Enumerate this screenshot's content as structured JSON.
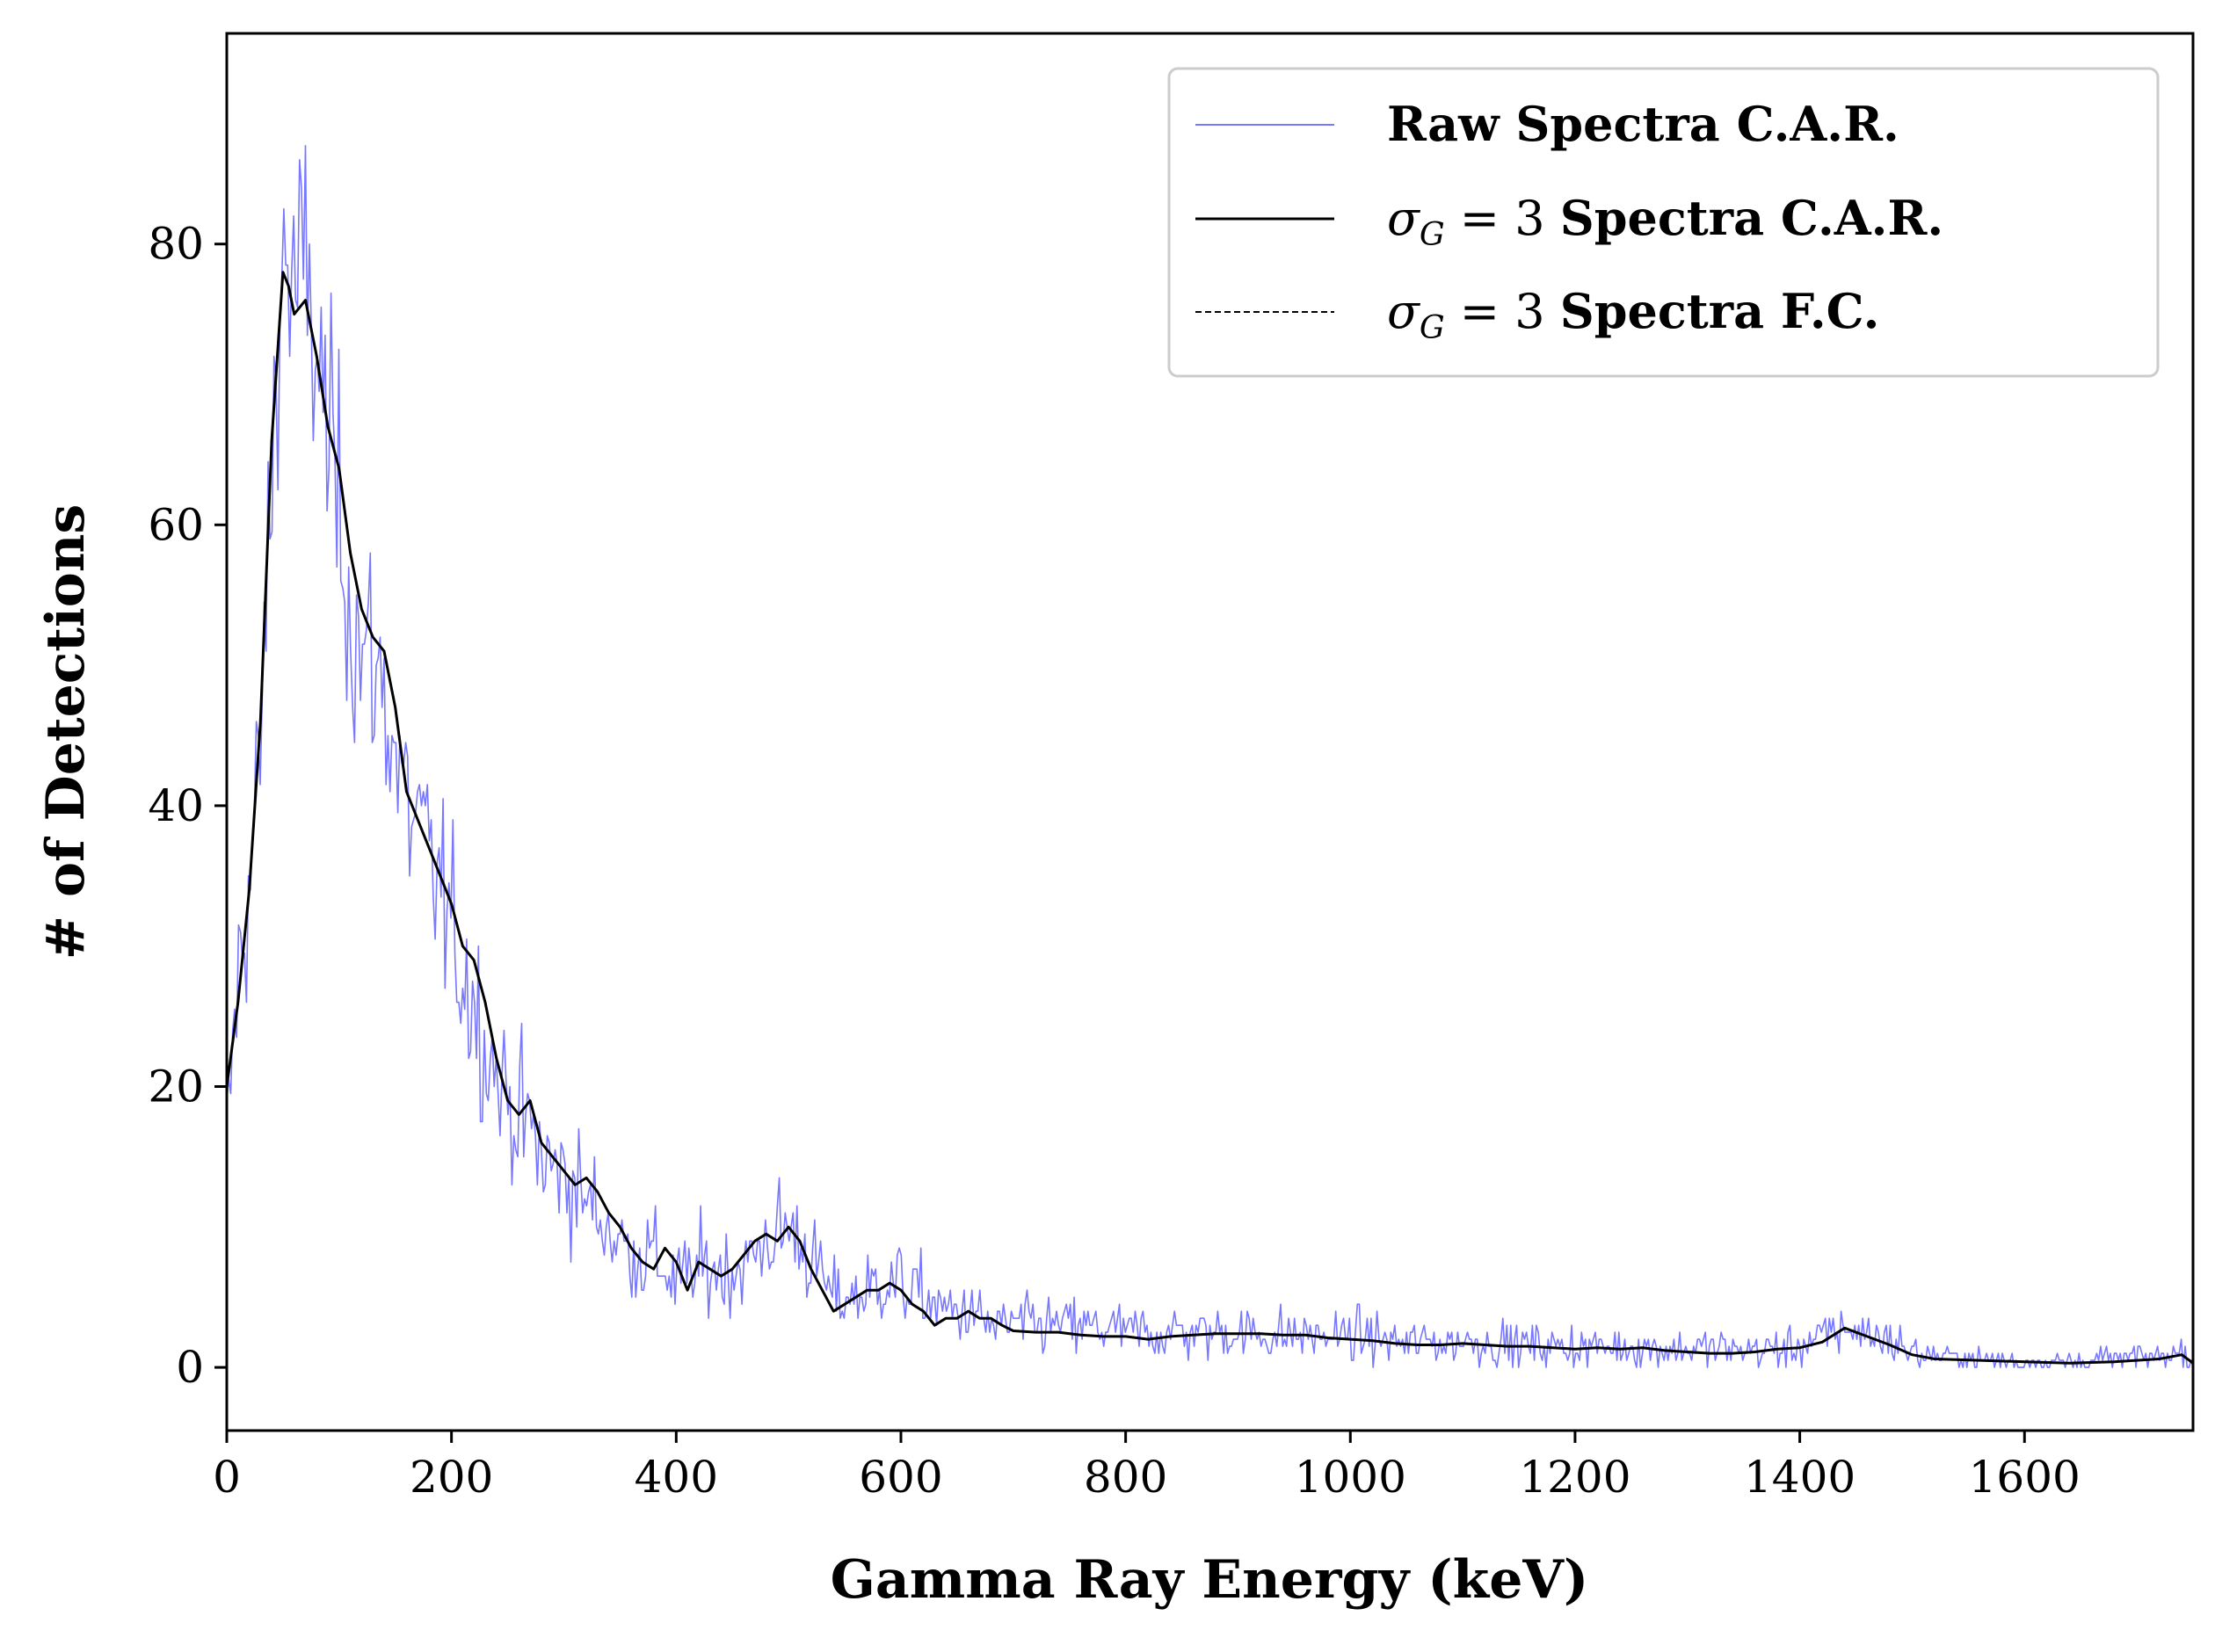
{
  "chart_data": {
    "type": "line",
    "title": "",
    "xlabel": "Gamma Ray Energy (keV)",
    "ylabel": "# of Detections",
    "xlim": [
      0,
      1750
    ],
    "ylim": [
      -4.5,
      95
    ],
    "x_ticks": [
      0,
      200,
      400,
      600,
      800,
      1000,
      1200,
      1400,
      1600
    ],
    "y_ticks": [
      0,
      20,
      40,
      60,
      80
    ],
    "grid": false,
    "legend_position": "top-right",
    "legend": {
      "raw": "Raw Spectra C.A.R.",
      "car_sym": "σ",
      "car_sub": "G",
      "car_eq": " = 3 ",
      "car_text": "Spectra C.A.R.",
      "fc_sym": "σ",
      "fc_sub": "G",
      "fc_eq": " = 3 ",
      "fc_text": "Spectra F.C."
    },
    "series": [
      {
        "name": "Raw Spectra C.A.R.",
        "color": "#7777ff",
        "style": "solid-thin",
        "x": [
          0,
          10,
          20,
          30,
          40,
          50,
          60,
          70,
          80,
          90,
          100,
          110,
          120,
          130,
          140,
          150,
          160,
          170,
          180,
          190,
          200,
          210,
          220,
          230,
          240,
          250,
          260,
          270,
          280,
          290,
          300,
          320,
          340,
          360,
          380,
          400,
          420,
          440,
          460,
          480,
          500,
          520,
          540,
          560,
          580,
          600,
          620,
          640,
          660,
          680,
          700,
          750,
          800,
          850,
          900,
          950,
          1000,
          1050,
          1100,
          1150,
          1200,
          1250,
          1300,
          1350,
          1400,
          1440,
          1480,
          1500,
          1550,
          1600,
          1650,
          1700,
          1740,
          1750
        ],
        "y": [
          16,
          28,
          34,
          44,
          64,
          80,
          76,
          78,
          72,
          66,
          62,
          54,
          51,
          50,
          48,
          44,
          40,
          38,
          36,
          34,
          31,
          28,
          26,
          23,
          21,
          19,
          18,
          17,
          15,
          14,
          14,
          12,
          10,
          8,
          8,
          6,
          7,
          7,
          7,
          9,
          10,
          8,
          5,
          5,
          6,
          6,
          5,
          4,
          4,
          3,
          3,
          3,
          2.5,
          2.5,
          2.5,
          2.3,
          2.2,
          1.8,
          1.8,
          1.6,
          1.5,
          1.5,
          1.3,
          1.2,
          1.4,
          2.8,
          2,
          1,
          0.6,
          0.4,
          0.4,
          0.6,
          1,
          0.5
        ]
      },
      {
        "name": "σ_G = 3 Spectra C.A.R.",
        "color": "#000000",
        "style": "solid",
        "x": [
          0,
          10,
          20,
          30,
          40,
          50,
          55,
          60,
          70,
          80,
          90,
          100,
          110,
          120,
          130,
          140,
          150,
          160,
          170,
          180,
          190,
          200,
          210,
          220,
          230,
          240,
          250,
          260,
          270,
          280,
          290,
          300,
          310,
          320,
          330,
          340,
          350,
          360,
          370,
          380,
          390,
          400,
          410,
          420,
          430,
          440,
          450,
          460,
          470,
          480,
          490,
          500,
          510,
          520,
          530,
          540,
          550,
          560,
          570,
          580,
          590,
          600,
          610,
          620,
          630,
          640,
          650,
          660,
          670,
          680,
          690,
          700,
          720,
          740,
          760,
          780,
          800,
          820,
          840,
          860,
          880,
          900,
          920,
          940,
          960,
          980,
          1000,
          1020,
          1040,
          1060,
          1080,
          1100,
          1120,
          1140,
          1160,
          1180,
          1200,
          1220,
          1240,
          1260,
          1280,
          1300,
          1320,
          1340,
          1360,
          1380,
          1400,
          1420,
          1440,
          1460,
          1480,
          1500,
          1520,
          1560,
          1600,
          1640,
          1680,
          1720,
          1740,
          1750
        ],
        "y": [
          20,
          26,
          34,
          46,
          66,
          78,
          77,
          75,
          76,
          72,
          67,
          64,
          58,
          54,
          52,
          51,
          47,
          41,
          39,
          37,
          35,
          33,
          30,
          29,
          26,
          22,
          19,
          18,
          19,
          16,
          15,
          14,
          13,
          13.5,
          12.5,
          11,
          10,
          8.5,
          7.5,
          7,
          8.5,
          7.5,
          5.5,
          7.5,
          7,
          6.5,
          7,
          8,
          9,
          9.5,
          9,
          10,
          9,
          7,
          5.5,
          4,
          4.5,
          5,
          5.5,
          5.5,
          6,
          5.5,
          4.5,
          4,
          3,
          3.5,
          3.5,
          4,
          3.5,
          3.5,
          3,
          2.6,
          2.5,
          2.5,
          2.3,
          2.2,
          2.2,
          2,
          2.2,
          2.3,
          2.4,
          2.4,
          2.4,
          2.3,
          2.3,
          2.1,
          2,
          1.9,
          1.7,
          1.6,
          1.6,
          1.7,
          1.6,
          1.5,
          1.5,
          1.4,
          1.3,
          1.4,
          1.3,
          1.4,
          1.2,
          1.1,
          1,
          1,
          1.1,
          1.3,
          1.4,
          1.8,
          2.8,
          2.2,
          1.6,
          0.9,
          0.6,
          0.5,
          0.4,
          0.3,
          0.4,
          0.6,
          0.9,
          0.3
        ]
      },
      {
        "name": "σ_G = 3 Spectra F.C.",
        "color": "#000000",
        "style": "dashed"
      }
    ]
  }
}
